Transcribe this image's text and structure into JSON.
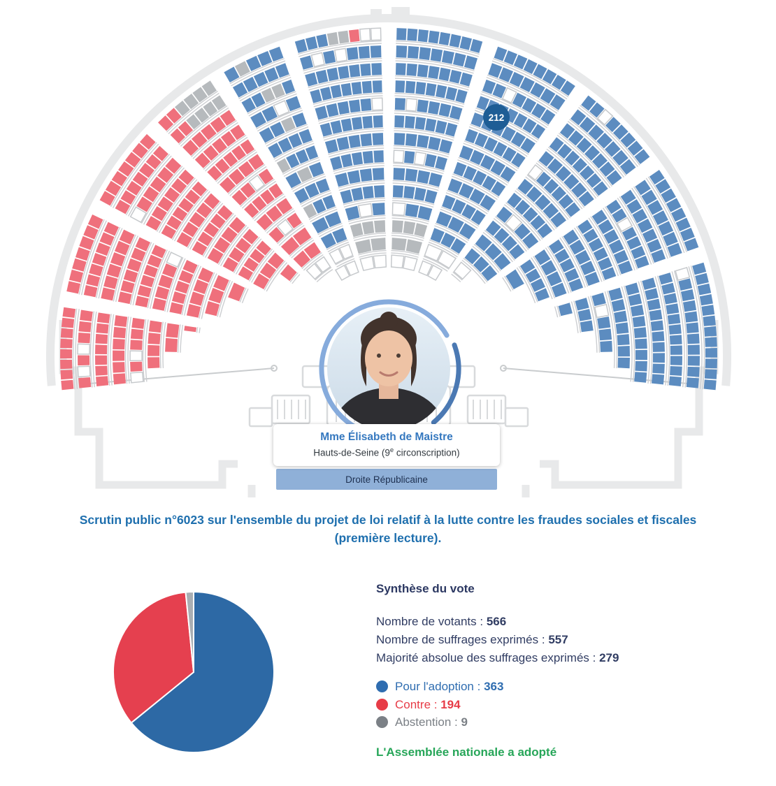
{
  "hemicycle": {
    "selected_seat_badge": "212",
    "badge_color": "#1e5d95"
  },
  "member_card": {
    "name": "Mme Élisabeth de Maistre",
    "constituency_pre": "Hauts-de-Seine (9",
    "constituency_sup": "e",
    "constituency_post": " circonscription)",
    "group": "Droite Républicaine",
    "group_band_color": "#8fb0d8"
  },
  "title": "Scrutin public n°6023 sur l'ensemble du projet de loi relatif à la lutte contre les fraudes sociales et fiscales (première lecture).",
  "synthesis": {
    "heading": "Synthèse du vote",
    "stats": [
      {
        "label": "Nombre de votants :",
        "value": "566"
      },
      {
        "label": "Nombre de suffrages exprimés :",
        "value": "557"
      },
      {
        "label": "Majorité absolue des suffrages exprimés :",
        "value": "279"
      }
    ],
    "verdict": "L'Assemblée nationale a adopté",
    "verdict_color": "#27a659"
  },
  "legend": [
    {
      "label": "Pour l'adoption :",
      "value": "363",
      "color": "#2f6db0"
    },
    {
      "label": "Contre :",
      "value": "194",
      "color": "#e73c47"
    },
    {
      "label": "Abstention :",
      "value": "9",
      "color": "#7b8086"
    }
  ],
  "chart_data": {
    "type": "pie",
    "title": "Synthèse du vote",
    "labels": [
      "Pour l'adoption",
      "Contre",
      "Abstention"
    ],
    "values": [
      363,
      194,
      9
    ],
    "colors": [
      "#2d69a5",
      "#e5404f",
      "#a9aeb3"
    ],
    "start_angle_deg": 0,
    "direction": "clockwise",
    "totals": {
      "votants": 566,
      "suffrages_exprimes": 557,
      "majorite_absolue": 279
    },
    "result": "L'Assemblée nationale a adopté"
  },
  "theme": {
    "hemicycle_seats": {
      "pour": "#5c8cc0",
      "contre": "#ef707c",
      "abstention": "#b6babd",
      "empty_fill": "#ffffff",
      "empty_stroke": "#c6c9cc",
      "structure": "#e8e9ea",
      "rail": "#ccced1",
      "ring_light": "#86abdc",
      "ring_dark": "#4b79b3"
    }
  }
}
